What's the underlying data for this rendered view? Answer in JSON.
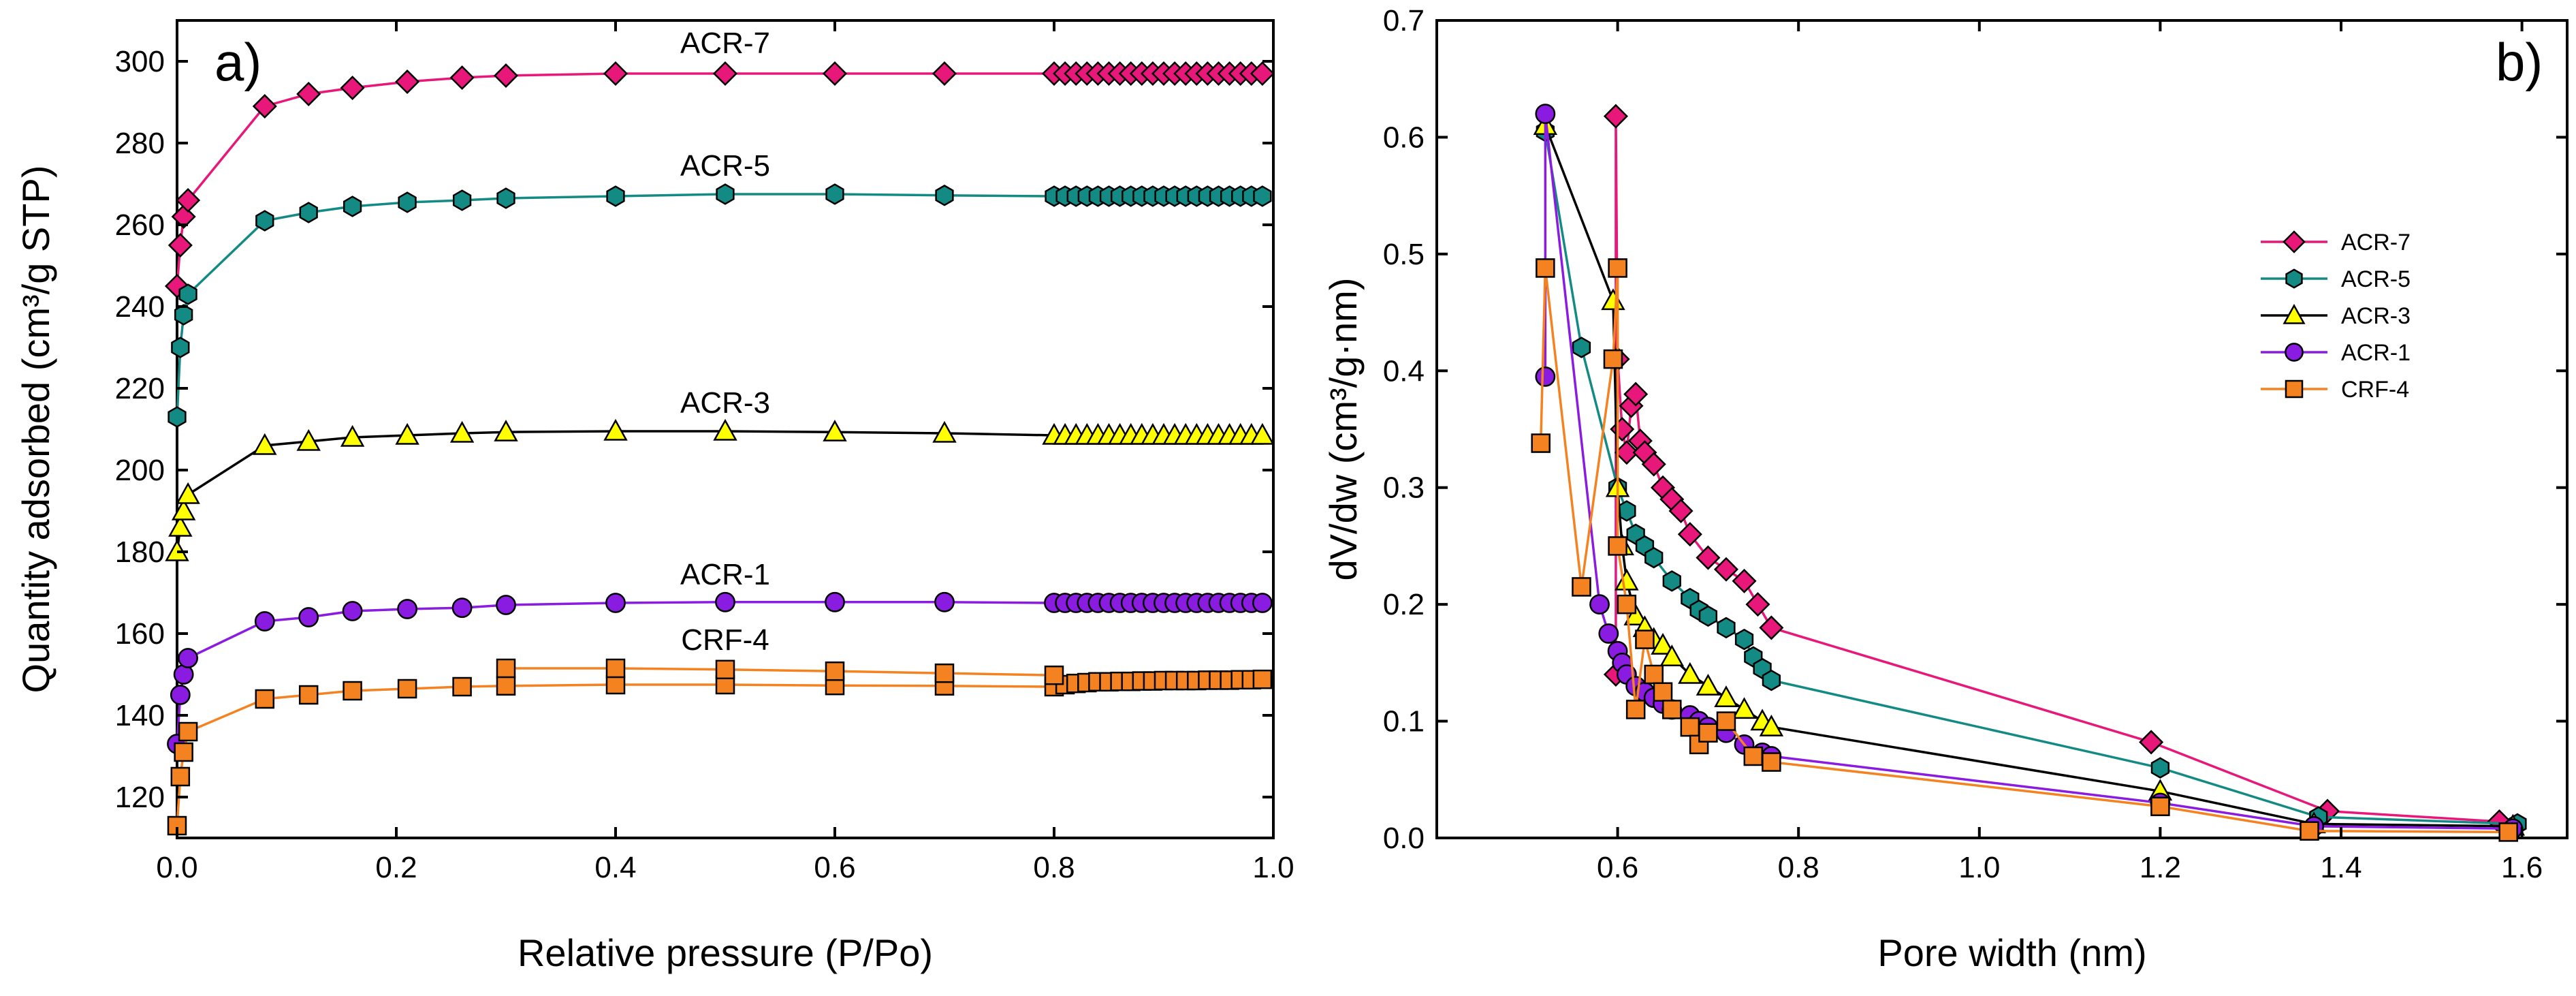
{
  "chart_data": [
    {
      "panel": "a)",
      "type": "line",
      "xlabel": "Relative pressure (P/Po)",
      "ylabel": "Quantity adsorbed (cm³/g STP)",
      "xlim": [
        0.0,
        1.0
      ],
      "ylim": [
        110,
        310
      ],
      "xticks": [
        "0.0",
        "0.2",
        "0.4",
        "0.6",
        "0.8",
        "1.0"
      ],
      "xtick_values": [
        0.0,
        0.2,
        0.4,
        0.6,
        0.8,
        1.0
      ],
      "yticks": [
        "120",
        "140",
        "160",
        "180",
        "200",
        "220",
        "240",
        "260",
        "280",
        "300"
      ],
      "ytick_values": [
        120,
        140,
        160,
        180,
        200,
        220,
        240,
        260,
        280,
        300
      ],
      "series": [
        {
          "name": "ACR-7",
          "label": "ACR-7",
          "label_at": [
            0.5,
            302
          ],
          "color": "#e8177a",
          "marker": "diamond",
          "x": [
            0.0,
            0.003,
            0.006,
            0.01,
            0.08,
            0.12,
            0.16,
            0.21,
            0.26,
            0.3,
            0.4,
            0.5,
            0.6,
            0.7,
            0.8,
            0.81,
            0.82,
            0.83,
            0.84,
            0.85,
            0.86,
            0.87,
            0.88,
            0.89,
            0.9,
            0.91,
            0.92,
            0.93,
            0.94,
            0.95,
            0.96,
            0.97,
            0.98,
            0.99
          ],
          "y": [
            245,
            255,
            262,
            266,
            289,
            292,
            293.5,
            295,
            296,
            296.5,
            297,
            297,
            297,
            297,
            297,
            297,
            297,
            297,
            297,
            297,
            297,
            297,
            297,
            297,
            297,
            297,
            297,
            297,
            297,
            297,
            297,
            297,
            297,
            297
          ]
        },
        {
          "name": "ACR-5",
          "label": "ACR-5",
          "label_at": [
            0.5,
            272
          ],
          "color": "#138a84",
          "marker": "hexagon",
          "x": [
            0.0,
            0.003,
            0.006,
            0.01,
            0.08,
            0.12,
            0.16,
            0.21,
            0.26,
            0.3,
            0.4,
            0.5,
            0.6,
            0.7,
            0.8,
            0.81,
            0.82,
            0.83,
            0.84,
            0.85,
            0.86,
            0.87,
            0.88,
            0.89,
            0.9,
            0.91,
            0.92,
            0.93,
            0.94,
            0.95,
            0.96,
            0.97,
            0.98,
            0.99
          ],
          "y": [
            213,
            230,
            238,
            243,
            261,
            263,
            264.5,
            265.5,
            266,
            266.5,
            267,
            267.5,
            267.5,
            267.2,
            267,
            267,
            267,
            267,
            267,
            267,
            267,
            267,
            267,
            267,
            267,
            267,
            267,
            267,
            267,
            267,
            267,
            267,
            267,
            267
          ]
        },
        {
          "name": "ACR-3",
          "label": "ACR-3",
          "label_at": [
            0.5,
            214
          ],
          "color": "#ffff00",
          "marker": "triangle",
          "x": [
            0.0,
            0.003,
            0.006,
            0.01,
            0.08,
            0.12,
            0.16,
            0.21,
            0.26,
            0.3,
            0.4,
            0.5,
            0.6,
            0.7,
            0.8,
            0.81,
            0.82,
            0.83,
            0.84,
            0.85,
            0.86,
            0.87,
            0.88,
            0.89,
            0.9,
            0.91,
            0.92,
            0.93,
            0.94,
            0.95,
            0.96,
            0.97,
            0.98,
            0.99
          ],
          "y": [
            180,
            186,
            190,
            194,
            206,
            207,
            208,
            208.5,
            209,
            209.3,
            209.5,
            209.5,
            209.3,
            209,
            208.5,
            208.5,
            208.5,
            208.5,
            208.5,
            208.5,
            208.5,
            208.5,
            208.5,
            208.5,
            208.5,
            208.5,
            208.5,
            208.5,
            208.5,
            208.5,
            208.5,
            208.5,
            208.5,
            208.5
          ]
        },
        {
          "name": "ACR-1",
          "label": "ACR-1",
          "label_at": [
            0.5,
            172
          ],
          "color": "#8a1be0",
          "marker": "circle",
          "x": [
            0.0,
            0.003,
            0.006,
            0.01,
            0.08,
            0.12,
            0.16,
            0.21,
            0.26,
            0.3,
            0.4,
            0.5,
            0.6,
            0.7,
            0.8,
            0.81,
            0.82,
            0.83,
            0.84,
            0.85,
            0.86,
            0.87,
            0.88,
            0.89,
            0.9,
            0.91,
            0.92,
            0.93,
            0.94,
            0.95,
            0.96,
            0.97,
            0.98,
            0.99
          ],
          "y": [
            133,
            145,
            150,
            154,
            163,
            164,
            165.5,
            166,
            166.3,
            167,
            167.5,
            167.7,
            167.7,
            167.7,
            167.5,
            167.5,
            167.5,
            167.5,
            167.5,
            167.5,
            167.5,
            167.5,
            167.5,
            167.5,
            167.5,
            167.5,
            167.5,
            167.5,
            167.5,
            167.5,
            167.5,
            167.5,
            167.5,
            167.5
          ]
        },
        {
          "name": "CRF-4",
          "label": "CRF-4",
          "label_at": [
            0.5,
            156
          ],
          "color": "#f58220",
          "marker": "square",
          "x": [
            0.0,
            0.003,
            0.006,
            0.01,
            0.08,
            0.12,
            0.16,
            0.21,
            0.26,
            0.3,
            0.4,
            0.5,
            0.6,
            0.7,
            0.8,
            0.81,
            0.82,
            0.83,
            0.84,
            0.85,
            0.86,
            0.87,
            0.88,
            0.89,
            0.9,
            0.91,
            0.92,
            0.93,
            0.94,
            0.95,
            0.96,
            0.97,
            0.98,
            0.99
          ],
          "y": [
            113,
            125,
            131,
            136,
            144,
            145,
            146,
            146.5,
            147,
            147.2,
            147.5,
            147.5,
            147.3,
            147.2,
            147,
            147.5,
            147.8,
            148,
            148.2,
            148.2,
            148.3,
            148.3,
            148.4,
            148.4,
            148.5,
            148.5,
            148.5,
            148.5,
            148.6,
            148.6,
            148.6,
            148.7,
            148.7,
            148.8
          ]
        },
        {
          "name": "CRF-4 desorption",
          "color": "#f58220",
          "marker": "square",
          "x": [
            0.3,
            0.4,
            0.5,
            0.6,
            0.7,
            0.8
          ],
          "y": [
            151.5,
            151.5,
            151.2,
            150.8,
            150.3,
            149.8
          ]
        }
      ]
    },
    {
      "panel": "b)",
      "type": "line",
      "xlabel": "Pore width (nm)",
      "ylabel": "dV/dw (cm³/g·nm)",
      "xlim": [
        0.4,
        1.65
      ],
      "ylim": [
        0.0,
        0.7
      ],
      "xticks": [
        "0.6",
        "0.8",
        "1.0",
        "1.2",
        "1.4",
        "1.6"
      ],
      "xtick_values": [
        0.6,
        0.8,
        1.0,
        1.2,
        1.4,
        1.6
      ],
      "yticks": [
        "0.0",
        "0.1",
        "0.2",
        "0.3",
        "0.4",
        "0.5",
        "0.6",
        "0.7"
      ],
      "ytick_values": [
        0.0,
        0.1,
        0.2,
        0.3,
        0.4,
        0.5,
        0.6,
        0.7
      ],
      "legend": [
        "ACR-7",
        "ACR-5",
        "ACR-3",
        "ACR-1",
        "CRF-4"
      ],
      "series": [
        {
          "name": "ACR-7",
          "color": "#e8177a",
          "marker": "diamond",
          "x": [
            0.598,
            0.598,
            0.6,
            0.605,
            0.61,
            0.615,
            0.62,
            0.625,
            0.63,
            0.64,
            0.65,
            0.66,
            0.67,
            0.68,
            0.7,
            0.72,
            0.74,
            0.755,
            0.77,
            1.19,
            1.385,
            1.575
          ],
          "y": [
            0.14,
            0.618,
            0.41,
            0.35,
            0.33,
            0.37,
            0.38,
            0.34,
            0.33,
            0.32,
            0.3,
            0.29,
            0.28,
            0.26,
            0.24,
            0.23,
            0.22,
            0.2,
            0.18,
            0.082,
            0.023,
            0.014
          ]
        },
        {
          "name": "ACR-5",
          "color": "#138a84",
          "marker": "hexagon",
          "x": [
            0.52,
            0.56,
            0.6,
            0.61,
            0.62,
            0.63,
            0.64,
            0.66,
            0.68,
            0.69,
            0.7,
            0.72,
            0.74,
            0.75,
            0.76,
            0.77,
            1.2,
            1.375,
            1.595
          ],
          "y": [
            0.605,
            0.42,
            0.3,
            0.28,
            0.26,
            0.25,
            0.24,
            0.22,
            0.205,
            0.195,
            0.19,
            0.18,
            0.17,
            0.155,
            0.145,
            0.135,
            0.06,
            0.018,
            0.012
          ]
        },
        {
          "name": "ACR-3",
          "color": "#ffff00",
          "marker": "triangle",
          "x": [
            0.52,
            0.595,
            0.6,
            0.605,
            0.61,
            0.62,
            0.63,
            0.64,
            0.65,
            0.66,
            0.68,
            0.7,
            0.72,
            0.74,
            0.76,
            0.77,
            1.2,
            1.37,
            1.59
          ],
          "y": [
            0.61,
            0.46,
            0.3,
            0.25,
            0.22,
            0.19,
            0.18,
            0.17,
            0.165,
            0.155,
            0.14,
            0.13,
            0.12,
            0.11,
            0.1,
            0.095,
            0.04,
            0.012,
            0.01
          ]
        },
        {
          "name": "ACR-1",
          "color": "#8a1be0",
          "marker": "circle",
          "x": [
            0.52,
            0.52,
            0.58,
            0.59,
            0.6,
            0.605,
            0.61,
            0.62,
            0.63,
            0.64,
            0.65,
            0.66,
            0.68,
            0.69,
            0.7,
            0.72,
            0.74,
            0.76,
            0.77,
            1.2,
            1.37,
            1.59
          ],
          "y": [
            0.395,
            0.62,
            0.2,
            0.175,
            0.16,
            0.15,
            0.14,
            0.13,
            0.125,
            0.12,
            0.115,
            0.11,
            0.105,
            0.1,
            0.095,
            0.09,
            0.08,
            0.073,
            0.07,
            0.03,
            0.01,
            0.008
          ]
        },
        {
          "name": "CRF-4",
          "color": "#f58220",
          "marker": "square",
          "x": [
            0.515,
            0.52,
            0.56,
            0.595,
            0.6,
            0.6,
            0.61,
            0.62,
            0.63,
            0.64,
            0.65,
            0.66,
            0.68,
            0.69,
            0.7,
            0.72,
            0.75,
            0.77,
            1.2,
            1.365,
            1.585
          ],
          "y": [
            0.338,
            0.488,
            0.215,
            0.41,
            0.488,
            0.25,
            0.2,
            0.11,
            0.17,
            0.14,
            0.125,
            0.11,
            0.095,
            0.08,
            0.09,
            0.1,
            0.07,
            0.065,
            0.027,
            0.006,
            0.005
          ]
        }
      ]
    }
  ]
}
